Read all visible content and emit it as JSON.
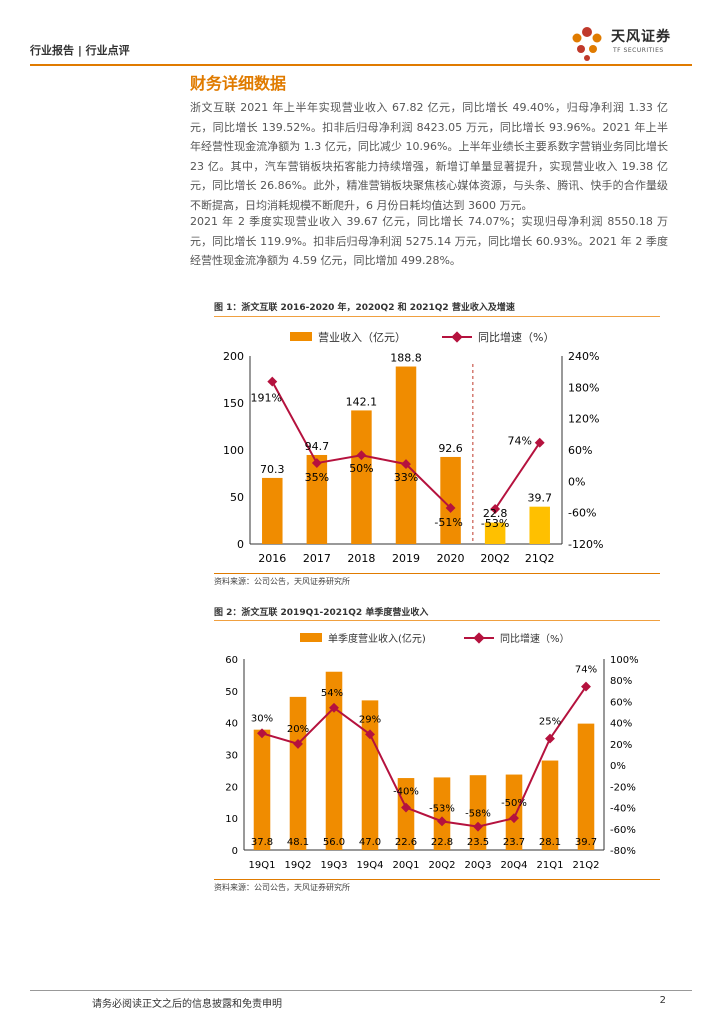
{
  "header": {
    "label": "行业报告 | 行业点评",
    "logo_cn": "天风证券",
    "logo_en": "TF SECURITIES"
  },
  "section_title": "财务详细数据",
  "paragraphs": [
    "浙文互联 2021 年上半年实现营业收入 67.82 亿元，同比增长 49.40%，归母净利润 1.33 亿元，同比增长 139.52%。扣非后归母净利润 8423.05 万元，同比增长 93.96%。2021 年上半年经营性现金流净额为 1.3 亿元，同比减少 10.96%。上半年业绩长主要系数字营销业务同比增长 23 亿。其中，汽车营销板块拓客能力持续增强，新增订单量显著提升，实现营业收入 19.38 亿元，同比增长 26.86%。此外，精准营销板块聚焦核心媒体资源，与头条、腾讯、快手的合作量级不断提高，日均消耗规模不断爬升，6 月份日耗均值达到 3600 万元。",
    "2021 年 2 季度实现营业收入 39.67 亿元，同比增长 74.07%；实现归母净利润 8550.18 万元，同比增长 119.9%。扣非后归母净利润 5275.14 万元，同比增长 60.93%。2021 年 2 季度经营性现金流净额为 4.59 亿元，同比增加 499.28%。"
  ],
  "figures": [
    {
      "title": "图 1：浙文互联 2016-2020 年，2020Q2 和 2021Q2 营业收入及增速",
      "source": "资料来源：公司公告，天风证券研究所"
    },
    {
      "title": "图 2：浙文互联 2019Q1-2021Q2 单季度营业收入",
      "source": "资料来源：公司公告，天风证券研究所"
    }
  ],
  "chart_data": [
    {
      "type": "bar",
      "categories": [
        "2016",
        "2017",
        "2018",
        "2019",
        "2020",
        "20Q2",
        "21Q2"
      ],
      "series": [
        {
          "name": "营业收入（亿元）",
          "type": "bar",
          "axis": "left",
          "values": [
            70.3,
            94.7,
            142.1,
            188.8,
            92.6,
            22.8,
            39.7
          ],
          "labels": [
            "70.3",
            "94.7",
            "142.1",
            "188.8",
            "92.6",
            "22.8",
            "39.7"
          ]
        },
        {
          "name": "同比增速（%）",
          "type": "line",
          "axis": "right",
          "values": [
            191,
            35,
            50,
            33,
            -51,
            -53,
            74
          ],
          "labels": [
            "191%",
            "35%",
            "50%",
            "33%",
            "-51%",
            "-53%",
            "74%"
          ]
        }
      ],
      "ylim": [
        0,
        200
      ],
      "yticks": [
        "0",
        "50",
        "100",
        "150",
        "200"
      ],
      "y2lim": [
        -120,
        240
      ],
      "y2ticks": [
        "-120%",
        "-60%",
        "0%",
        "60%",
        "120%",
        "180%",
        "240%"
      ],
      "legend": "top",
      "colors": {
        "bar": "#F08C00",
        "bar_highlight": "#FFC000",
        "line": "#B5123E",
        "divider": "#C0392B"
      }
    },
    {
      "type": "bar",
      "categories": [
        "19Q1",
        "19Q2",
        "19Q3",
        "19Q4",
        "20Q1",
        "20Q2",
        "20Q3",
        "20Q4",
        "21Q1",
        "21Q2"
      ],
      "series": [
        {
          "name": "单季度营业收入(亿元)",
          "type": "bar",
          "axis": "left",
          "values": [
            37.8,
            48.1,
            56.0,
            47.0,
            22.6,
            22.8,
            23.5,
            23.7,
            28.1,
            39.7
          ],
          "labels": [
            "37.8",
            "48.1",
            "56.0",
            "47.0",
            "22.6",
            "22.8",
            "23.5",
            "23.7",
            "28.1",
            "39.7"
          ]
        },
        {
          "name": "同比增速（%）",
          "type": "line",
          "axis": "right",
          "values": [
            30,
            20,
            54,
            29,
            -40,
            -53,
            -58,
            -50,
            25,
            74
          ],
          "labels": [
            "30%",
            "20%",
            "54%",
            "29%",
            "-40%",
            "-53%",
            "-58%",
            "-50%",
            "25%",
            "74%"
          ]
        }
      ],
      "ylim": [
        0,
        60
      ],
      "yticks": [
        "0",
        "10",
        "20",
        "30",
        "40",
        "50",
        "60"
      ],
      "y2lim": [
        -80,
        100
      ],
      "y2ticks": [
        "-80%",
        "-60%",
        "-40%",
        "-20%",
        "0%",
        "20%",
        "40%",
        "60%",
        "80%",
        "100%"
      ],
      "legend": "top",
      "colors": {
        "bar": "#F08C00",
        "line": "#B5123E"
      }
    }
  ],
  "footer": {
    "disclaimer": "请务必阅读正文之后的信息披露和免责申明",
    "page": "2"
  }
}
